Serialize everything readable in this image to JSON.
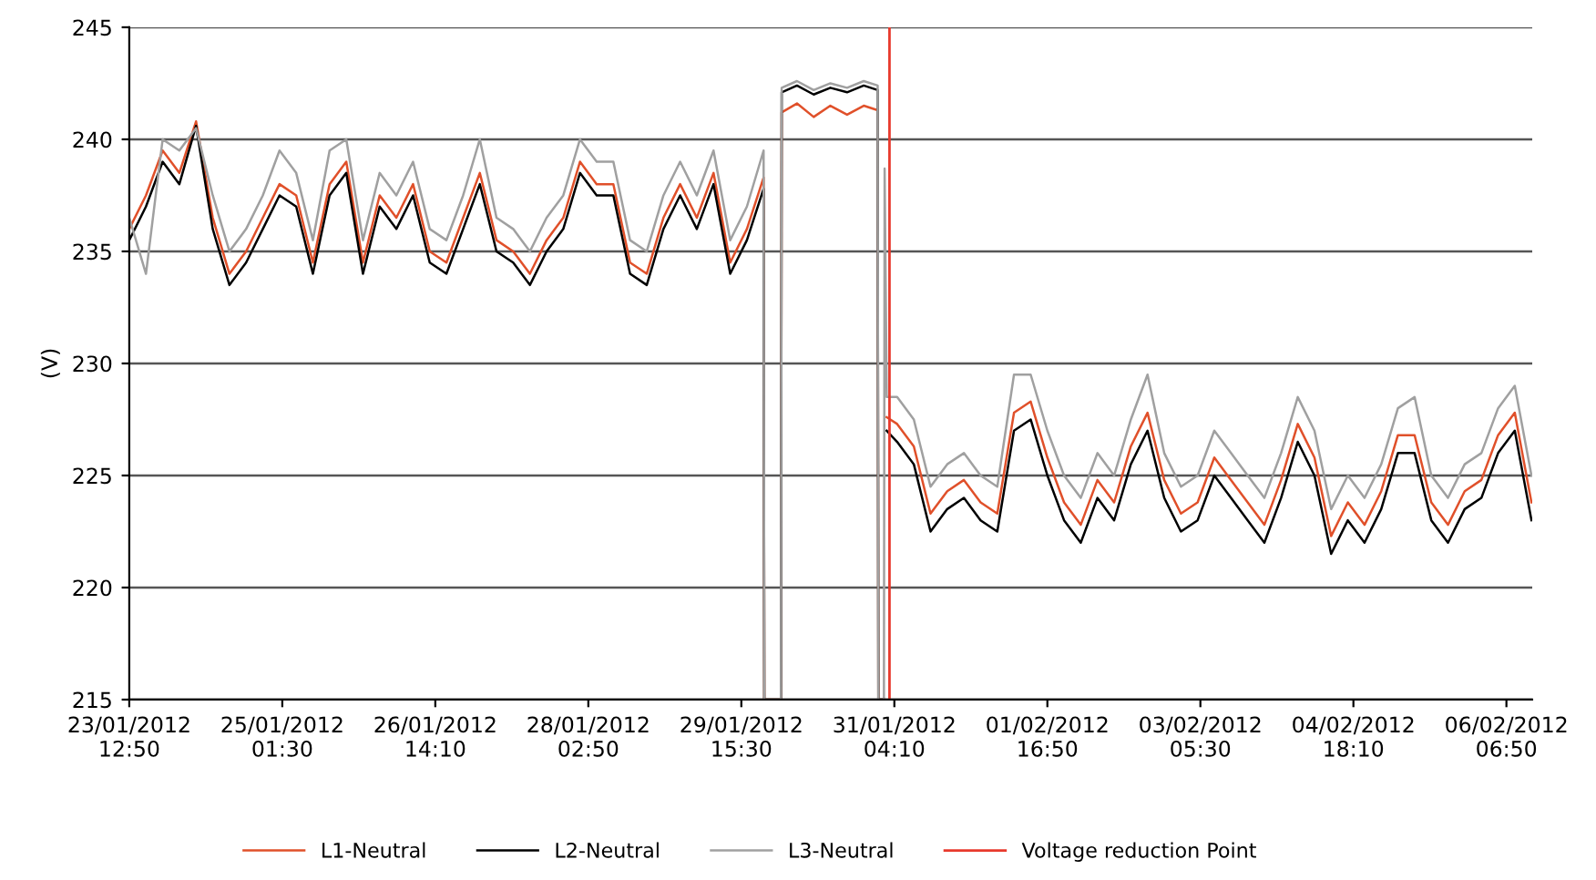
{
  "chart_data": {
    "type": "line",
    "ylabel": "(V)",
    "x": [
      "2012-01-23T12:50",
      "2012-01-23T16:50",
      "2012-01-23T20:50",
      "2012-01-24T00:50",
      "2012-01-24T04:50",
      "2012-01-24T08:50",
      "2012-01-24T12:50",
      "2012-01-24T16:50",
      "2012-01-24T20:50",
      "2012-01-25T00:50",
      "2012-01-25T04:50",
      "2012-01-25T08:50",
      "2012-01-25T12:50",
      "2012-01-25T16:50",
      "2012-01-25T20:50",
      "2012-01-26T00:50",
      "2012-01-26T04:50",
      "2012-01-26T08:50",
      "2012-01-26T12:50",
      "2012-01-26T16:50",
      "2012-01-26T20:50",
      "2012-01-27T00:50",
      "2012-01-27T04:50",
      "2012-01-27T08:50",
      "2012-01-27T12:50",
      "2012-01-27T16:50",
      "2012-01-27T20:50",
      "2012-01-28T00:50",
      "2012-01-28T04:50",
      "2012-01-28T08:50",
      "2012-01-28T12:50",
      "2012-01-28T16:50",
      "2012-01-28T20:50",
      "2012-01-29T00:50",
      "2012-01-29T04:50",
      "2012-01-29T08:50",
      "2012-01-29T12:50",
      "2012-01-29T16:50",
      "2012-01-29T20:50",
      "2012-01-29T21:00",
      "2012-01-30T01:00",
      "2012-01-30T01:10",
      "2012-01-30T04:50",
      "2012-01-30T08:50",
      "2012-01-30T12:50",
      "2012-01-30T16:50",
      "2012-01-30T20:50",
      "2012-01-31T00:10",
      "2012-01-31T00:20",
      "2012-01-31T01:40",
      "2012-01-31T01:50",
      "2012-01-31T02:20",
      "2012-01-31T04:50",
      "2012-01-31T08:50",
      "2012-01-31T12:50",
      "2012-01-31T16:50",
      "2012-01-31T20:50",
      "2012-02-01T00:50",
      "2012-02-01T04:50",
      "2012-02-01T08:50",
      "2012-02-01T12:50",
      "2012-02-01T16:50",
      "2012-02-01T20:50",
      "2012-02-02T00:50",
      "2012-02-02T04:50",
      "2012-02-02T08:50",
      "2012-02-02T12:50",
      "2012-02-02T16:50",
      "2012-02-02T20:50",
      "2012-02-03T00:50",
      "2012-02-03T04:50",
      "2012-02-03T08:50",
      "2012-02-03T12:50",
      "2012-02-03T16:50",
      "2012-02-03T20:50",
      "2012-02-04T00:50",
      "2012-02-04T04:50",
      "2012-02-04T08:50",
      "2012-02-04T12:50",
      "2012-02-04T16:50",
      "2012-02-04T20:50",
      "2012-02-05T00:50",
      "2012-02-05T04:50",
      "2012-02-05T08:50",
      "2012-02-05T12:50",
      "2012-02-05T16:50",
      "2012-02-05T20:50",
      "2012-02-06T00:50",
      "2012-02-06T04:50",
      "2012-02-06T08:50",
      "2012-02-06T12:50"
    ],
    "series": [
      {
        "name": "L1-Neutral",
        "color": "#e0502a",
        "values": [
          236,
          237.5,
          239.5,
          238.5,
          240.8,
          236.5,
          234,
          235,
          236.5,
          238,
          237.5,
          234.5,
          238,
          239,
          234.5,
          237.5,
          236.5,
          238,
          235,
          234.5,
          236.5,
          238.5,
          235.5,
          235,
          234,
          235.5,
          236.5,
          239,
          238,
          238,
          234.5,
          234,
          236.5,
          238,
          236.5,
          238.5,
          234.5,
          236,
          238.3,
          215,
          215,
          241.2,
          241.6,
          241.0,
          241.5,
          241.1,
          241.5,
          241.3,
          215,
          215,
          null,
          227.6,
          227.3,
          226.3,
          223.3,
          224.3,
          224.8,
          223.8,
          223.3,
          227.8,
          228.3,
          225.8,
          223.8,
          222.8,
          224.8,
          223.8,
          226.3,
          227.8,
          224.8,
          223.3,
          223.8,
          225.8,
          224.8,
          223.8,
          222.8,
          224.8,
          227.3,
          225.8,
          222.3,
          223.8,
          222.8,
          224.3,
          226.8,
          226.8,
          223.8,
          222.8,
          224.3,
          224.8,
          226.8,
          227.8,
          223.8
        ]
      },
      {
        "name": "L2-Neutral",
        "color": "#000000",
        "values": [
          235.5,
          237,
          239,
          238,
          240.6,
          236,
          233.5,
          234.5,
          236,
          237.5,
          237,
          234,
          237.5,
          238.5,
          234,
          237,
          236,
          237.5,
          234.5,
          234,
          236,
          238,
          235,
          234.5,
          233.5,
          235,
          236,
          238.5,
          237.5,
          237.5,
          234,
          233.5,
          236,
          237.5,
          236,
          238,
          234,
          235.5,
          237.8,
          215,
          215,
          242.1,
          242.4,
          242.0,
          242.3,
          242.1,
          242.4,
          242.2,
          215,
          215,
          null,
          227,
          226.5,
          225.5,
          222.5,
          223.5,
          224,
          223,
          222.5,
          227,
          227.5,
          225,
          223,
          222,
          224,
          223,
          225.5,
          227,
          224,
          222.5,
          223,
          225,
          224,
          223,
          222,
          224,
          226.5,
          225,
          221.5,
          223,
          222,
          223.5,
          226,
          226,
          223,
          222,
          223.5,
          224,
          226,
          227,
          223
        ]
      },
      {
        "name": "L3-Neutral",
        "color": "#a0a0a0",
        "values": [
          236.5,
          234,
          240,
          239.5,
          240.5,
          237.5,
          235,
          236,
          237.5,
          239.5,
          238.5,
          235.5,
          239.5,
          240,
          235.5,
          238.5,
          237.5,
          239,
          236,
          235.5,
          237.5,
          240,
          236.5,
          236,
          235,
          236.5,
          237.5,
          240,
          239,
          239,
          235.5,
          235,
          237.5,
          239,
          237.5,
          239.5,
          235.5,
          237,
          239.5,
          215,
          215,
          242.3,
          242.6,
          242.2,
          242.5,
          242.3,
          242.6,
          242.4,
          215,
          215,
          238.7,
          228.5,
          228.5,
          227.5,
          224.5,
          225.5,
          226,
          225,
          224.5,
          229.5,
          229.5,
          227,
          225,
          224,
          226,
          225,
          227.5,
          229.5,
          226,
          224.5,
          225,
          227,
          226,
          225,
          224,
          226,
          228.5,
          227,
          223.5,
          225,
          224,
          225.5,
          228,
          228.5,
          225,
          224,
          225.5,
          226,
          228,
          229,
          225
        ]
      }
    ],
    "ref_lines": [
      {
        "axis": "x",
        "value": "2012-01-31T03:00",
        "label": "Voltage reduction Point",
        "color": "#e8392c",
        "line_style": "solid"
      }
    ],
    "xlim": [
      "2012-01-23T12:50",
      "2012-02-06T13:00"
    ],
    "xticks": [
      {
        "value": "2012-01-23T12:50",
        "label": "23/01/2012\n12:50"
      },
      {
        "value": "2012-01-25T01:30",
        "label": "25/01/2012\n01:30"
      },
      {
        "value": "2012-01-26T14:10",
        "label": "26/01/2012\n14:10"
      },
      {
        "value": "2012-01-28T02:50",
        "label": "28/01/2012\n02:50"
      },
      {
        "value": "2012-01-29T15:30",
        "label": "29/01/2012\n15:30"
      },
      {
        "value": "2012-01-31T04:10",
        "label": "31/01/2012\n04:10"
      },
      {
        "value": "2012-02-01T16:50",
        "label": "01/02/2012\n16:50"
      },
      {
        "value": "2012-02-03T05:30",
        "label": "03/02/2012\n05:30"
      },
      {
        "value": "2012-02-04T18:10",
        "label": "04/02/2012\n18:10"
      },
      {
        "value": "2012-02-06T06:50",
        "label": "06/02/2012\n06:50"
      }
    ],
    "ylim": [
      215,
      245
    ],
    "yticks": [
      215,
      220,
      225,
      230,
      235,
      240,
      245
    ],
    "grid": "y",
    "legend": "bottom",
    "marker": "none",
    "line_style": "solid"
  }
}
